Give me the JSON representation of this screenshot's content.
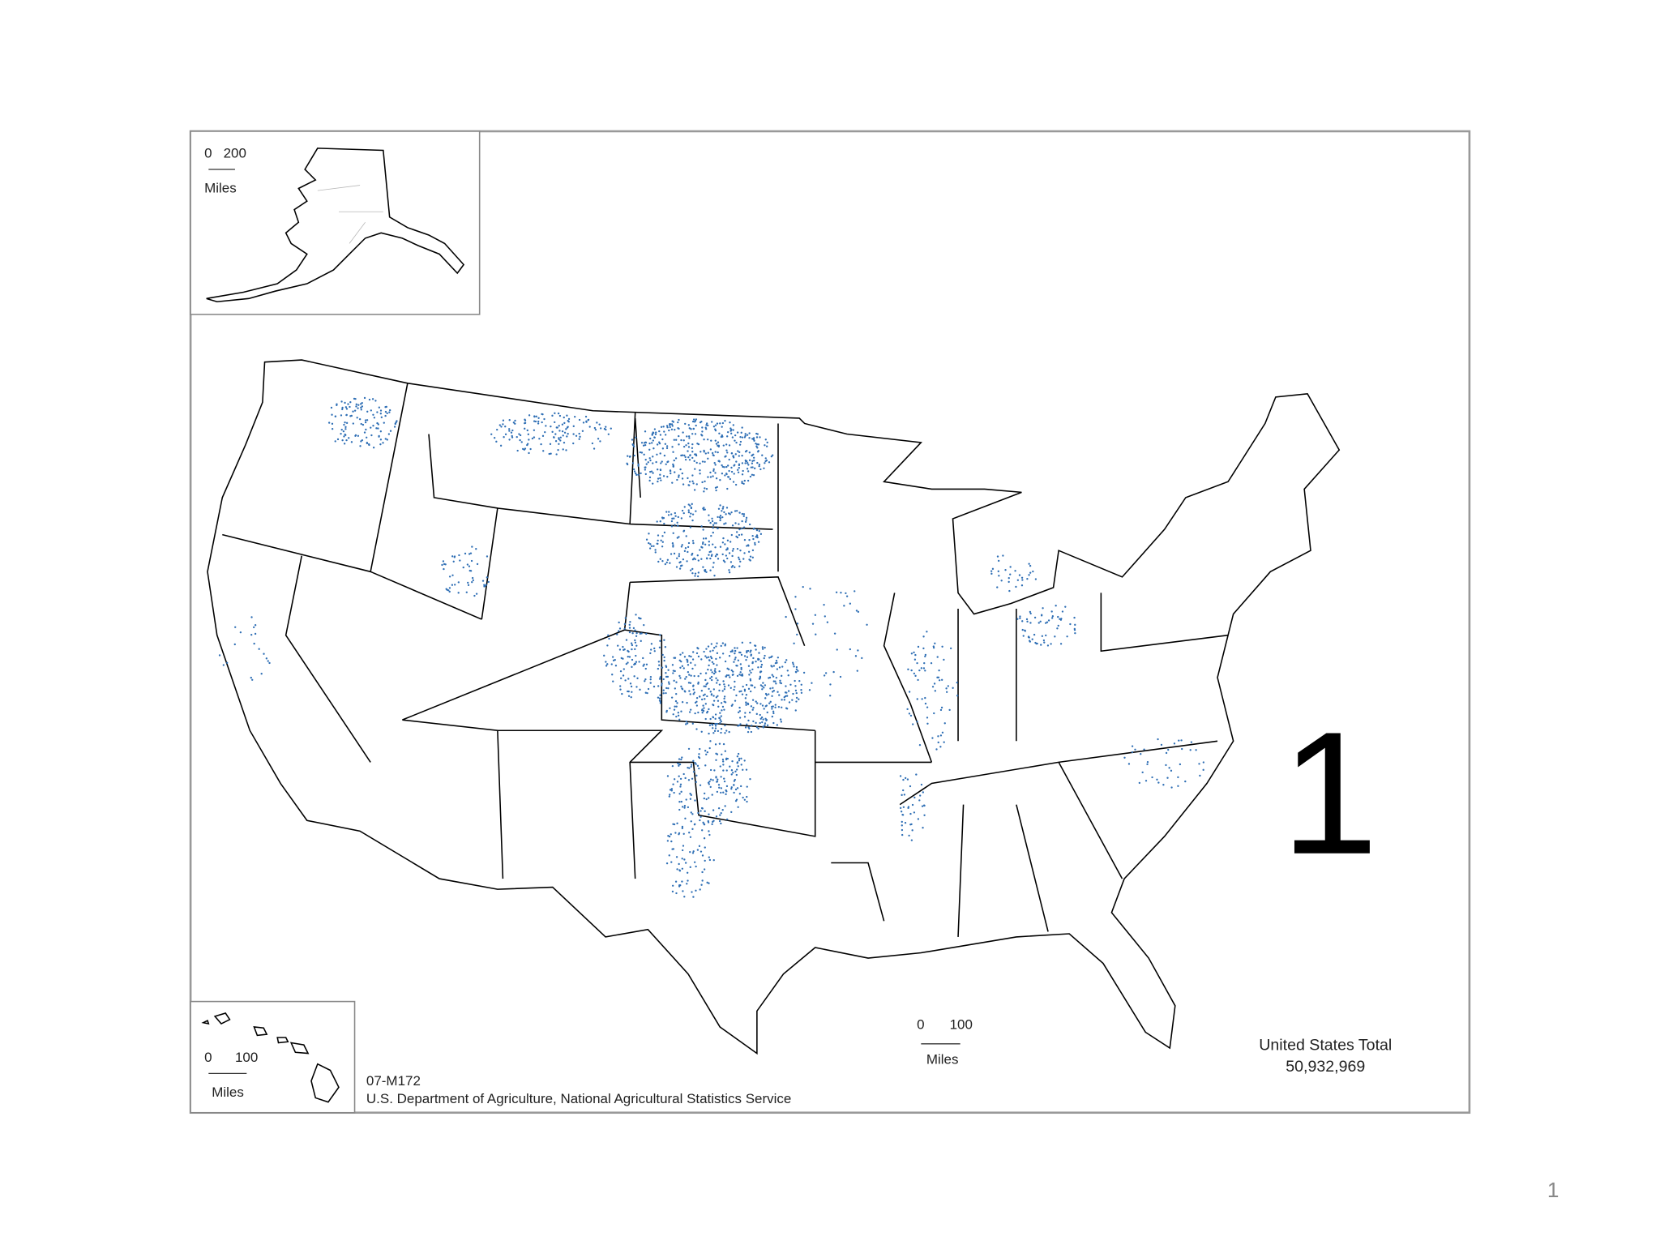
{
  "alaska_inset": {
    "scale_start": "0",
    "scale_end": "200",
    "scale_unit": "Miles"
  },
  "hawaii_inset": {
    "scale_start": "0",
    "scale_end": "100",
    "scale_unit": "Miles"
  },
  "main_map": {
    "scale_start": "0",
    "scale_end": "100",
    "scale_unit": "Miles",
    "map_id": "07-M172",
    "source": "U.S. Department of Agriculture, National Agricultural Statistics Service",
    "total_label": "United States Total",
    "total_value": "50,932,969"
  },
  "slide": {
    "big_number": "1",
    "page_number": "1"
  }
}
